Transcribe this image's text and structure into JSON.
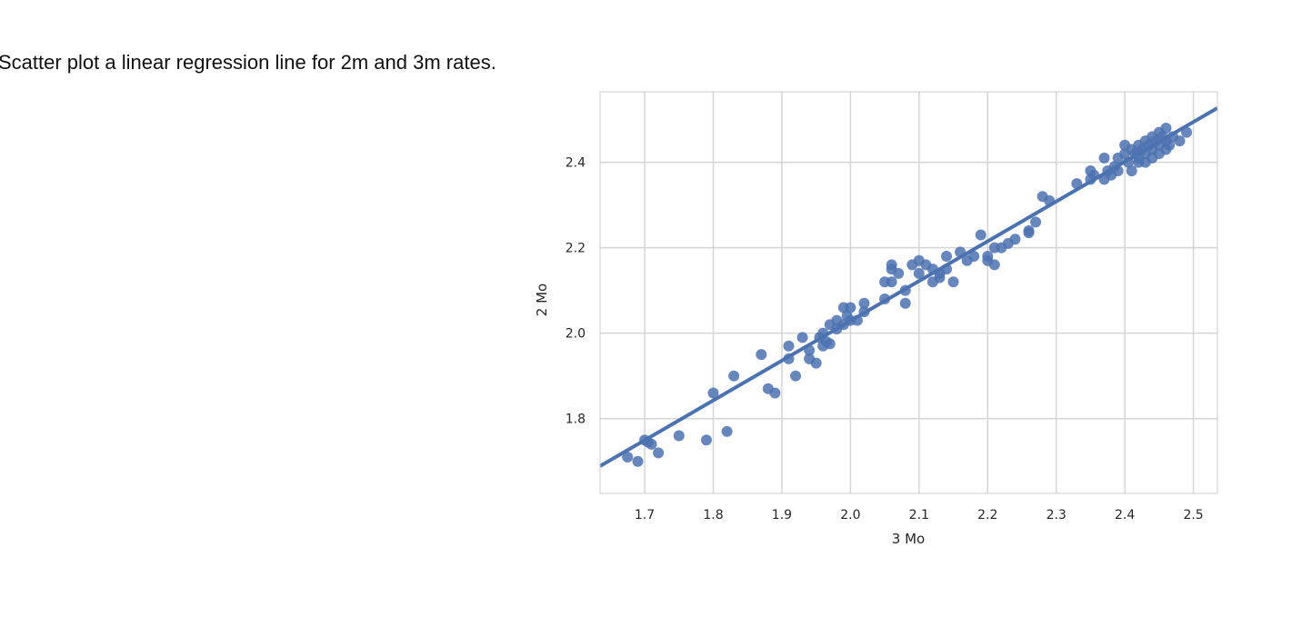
{
  "caption": "Scatter plot a linear regression line for 2m and 3m rates.",
  "chart_data": {
    "type": "scatter",
    "title": "",
    "xlabel": "3 Mo",
    "ylabel": "2 Mo",
    "xlim": [
      1.635,
      2.535
    ],
    "ylim": [
      1.625,
      2.565
    ],
    "xticks": [
      1.7,
      1.8,
      1.9,
      2.0,
      2.1,
      2.2,
      2.3,
      2.4,
      2.5
    ],
    "xtick_labels": [
      "1.7",
      "1.8",
      "1.9",
      "2.0",
      "2.1",
      "2.2",
      "2.3",
      "2.4",
      "2.5"
    ],
    "yticks": [
      1.8,
      2.0,
      2.2,
      2.4
    ],
    "ytick_labels": [
      "1.8",
      "2.0",
      "2.2",
      "2.4"
    ],
    "grid": true,
    "background": "#ffffff",
    "grid_color": "#d5d5d5",
    "point_color": "#4c72b0",
    "line_color": "#4c72b0",
    "regression_line": {
      "x": [
        1.635,
        2.535
      ],
      "y": [
        1.689,
        2.527
      ]
    },
    "points": [
      [
        1.675,
        1.71
      ],
      [
        1.69,
        1.7
      ],
      [
        1.7,
        1.75
      ],
      [
        1.705,
        1.745
      ],
      [
        1.71,
        1.74
      ],
      [
        1.72,
        1.72
      ],
      [
        1.75,
        1.76
      ],
      [
        1.79,
        1.75
      ],
      [
        1.8,
        1.86
      ],
      [
        1.82,
        1.77
      ],
      [
        1.83,
        1.9
      ],
      [
        1.87,
        1.95
      ],
      [
        1.88,
        1.87
      ],
      [
        1.89,
        1.86
      ],
      [
        1.91,
        1.94
      ],
      [
        1.91,
        1.97
      ],
      [
        1.92,
        1.9
      ],
      [
        1.93,
        1.99
      ],
      [
        1.94,
        1.96
      ],
      [
        1.94,
        1.94
      ],
      [
        1.95,
        1.93
      ],
      [
        1.955,
        1.99
      ],
      [
        1.96,
        1.97
      ],
      [
        1.96,
        2.0
      ],
      [
        1.965,
        1.98
      ],
      [
        1.97,
        1.975
      ],
      [
        1.97,
        2.02
      ],
      [
        1.98,
        2.01
      ],
      [
        1.98,
        2.03
      ],
      [
        1.99,
        2.02
      ],
      [
        1.99,
        2.06
      ],
      [
        1.995,
        2.04
      ],
      [
        2.0,
        2.03
      ],
      [
        2.0,
        2.06
      ],
      [
        2.01,
        2.03
      ],
      [
        2.02,
        2.05
      ],
      [
        2.02,
        2.07
      ],
      [
        2.05,
        2.08
      ],
      [
        2.05,
        2.12
      ],
      [
        2.06,
        2.15
      ],
      [
        2.06,
        2.12
      ],
      [
        2.06,
        2.16
      ],
      [
        2.07,
        2.14
      ],
      [
        2.08,
        2.07
      ],
      [
        2.08,
        2.1
      ],
      [
        2.09,
        2.16
      ],
      [
        2.1,
        2.17
      ],
      [
        2.1,
        2.14
      ],
      [
        2.11,
        2.16
      ],
      [
        2.12,
        2.15
      ],
      [
        2.12,
        2.12
      ],
      [
        2.13,
        2.14
      ],
      [
        2.13,
        2.13
      ],
      [
        2.14,
        2.15
      ],
      [
        2.14,
        2.18
      ],
      [
        2.15,
        2.12
      ],
      [
        2.16,
        2.19
      ],
      [
        2.17,
        2.17
      ],
      [
        2.18,
        2.18
      ],
      [
        2.19,
        2.23
      ],
      [
        2.2,
        2.18
      ],
      [
        2.2,
        2.17
      ],
      [
        2.21,
        2.16
      ],
      [
        2.21,
        2.2
      ],
      [
        2.22,
        2.2
      ],
      [
        2.23,
        2.21
      ],
      [
        2.24,
        2.22
      ],
      [
        2.26,
        2.24
      ],
      [
        2.26,
        2.235
      ],
      [
        2.27,
        2.26
      ],
      [
        2.28,
        2.32
      ],
      [
        2.29,
        2.31
      ],
      [
        2.33,
        2.35
      ],
      [
        2.35,
        2.36
      ],
      [
        2.35,
        2.38
      ],
      [
        2.355,
        2.37
      ],
      [
        2.37,
        2.36
      ],
      [
        2.37,
        2.41
      ],
      [
        2.375,
        2.38
      ],
      [
        2.38,
        2.37
      ],
      [
        2.385,
        2.39
      ],
      [
        2.39,
        2.38
      ],
      [
        2.39,
        2.41
      ],
      [
        2.4,
        2.42
      ],
      [
        2.4,
        2.44
      ],
      [
        2.405,
        2.4
      ],
      [
        2.41,
        2.38
      ],
      [
        2.41,
        2.43
      ],
      [
        2.415,
        2.42
      ],
      [
        2.42,
        2.4
      ],
      [
        2.42,
        2.44
      ],
      [
        2.42,
        2.41
      ],
      [
        2.425,
        2.43
      ],
      [
        2.43,
        2.45
      ],
      [
        2.43,
        2.42
      ],
      [
        2.43,
        2.4
      ],
      [
        2.435,
        2.44
      ],
      [
        2.44,
        2.46
      ],
      [
        2.44,
        2.43
      ],
      [
        2.44,
        2.41
      ],
      [
        2.445,
        2.45
      ],
      [
        2.45,
        2.47
      ],
      [
        2.45,
        2.44
      ],
      [
        2.45,
        2.42
      ],
      [
        2.455,
        2.46
      ],
      [
        2.46,
        2.48
      ],
      [
        2.46,
        2.45
      ],
      [
        2.46,
        2.43
      ],
      [
        2.465,
        2.44
      ],
      [
        2.47,
        2.46
      ],
      [
        2.48,
        2.45
      ],
      [
        2.49,
        2.47
      ]
    ]
  }
}
